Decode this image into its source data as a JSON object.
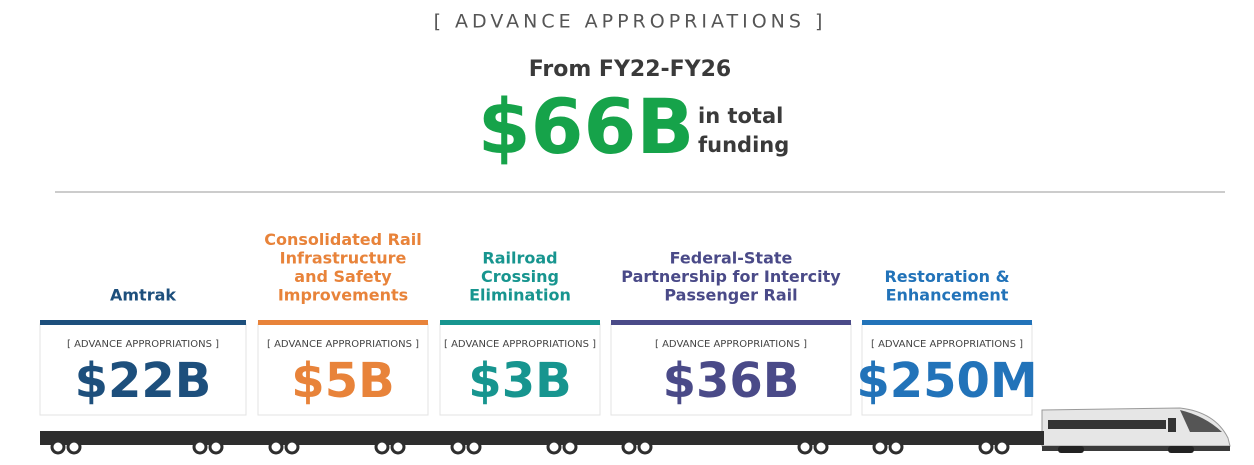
{
  "header": {
    "kicker": "[ ADVANCE APPROPRIATIONS ]",
    "period": "From FY22-FY26",
    "total": "$66B",
    "total_note": [
      "in total",
      "funding"
    ],
    "total_color": "#16a34a"
  },
  "cars": [
    {
      "label": [
        "Amtrak"
      ],
      "kicker": "[ ADVANCE APPROPRIATIONS ]",
      "amount": "$22B",
      "color": "#1d4f7c"
    },
    {
      "label": [
        "Consolidated Rail",
        "Infrastructure",
        "and Safety",
        "Improvements"
      ],
      "kicker": "[ ADVANCE APPROPRIATIONS ]",
      "amount": "$5B",
      "color": "#e8833a"
    },
    {
      "label": [
        "Railroad",
        "Crossing",
        "Elimination"
      ],
      "kicker": "[ ADVANCE APPROPRIATIONS ]",
      "amount": "$3B",
      "color": "#17958f"
    },
    {
      "label": [
        "Federal-State",
        "Partnership for Intercity",
        "Passenger Rail"
      ],
      "kicker": "[ ADVANCE APPROPRIATIONS ]",
      "amount": "$36B",
      "color": "#4a4a88"
    },
    {
      "label": [
        "Restoration &",
        "Enhancement"
      ],
      "kicker": "[ ADVANCE APPROPRIATIONS ]",
      "amount": "$250M",
      "color": "#2273b9"
    }
  ]
}
